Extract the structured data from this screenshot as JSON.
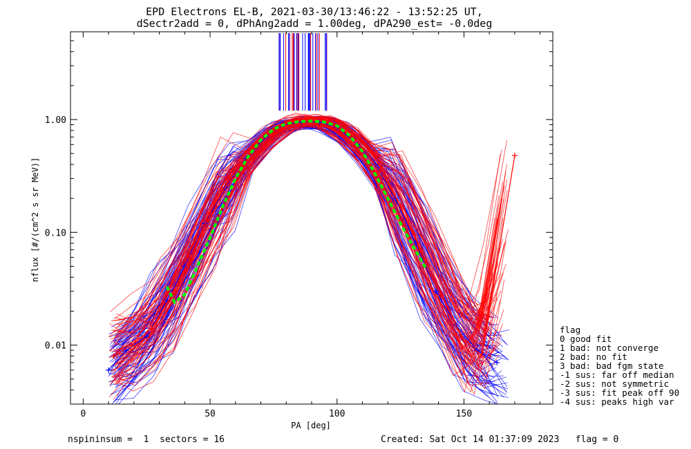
{
  "chart_data": {
    "type": "line",
    "title_line1": "EPD Electrons EL-B, 2021-03-30/13:46:22 - 13:52:25 UT,",
    "title_line2": "dSectr2add = 0, dPhAng2add = 1.00deg, dPA290_est=  -0.0deg",
    "xlabel": "PA [deg]",
    "ylabel": "nflux [#/(cm^2 s sr MeV)]",
    "xlim": [
      -5,
      185
    ],
    "ylim": [
      0.003,
      6.0
    ],
    "yscale": "log",
    "x_ticks": [
      0,
      50,
      100,
      150
    ],
    "x_tick_labels": [
      "0",
      "50",
      "100",
      "150"
    ],
    "y_ticks": [
      0.01,
      0.1,
      1.0
    ],
    "y_tick_labels": [
      "0.01",
      "0.10",
      "1.00"
    ],
    "series": [
      {
        "color": "#0000ff",
        "marker": "+",
        "values": [
          [
            10,
            0.006
          ],
          [
            17,
            0.009
          ],
          [
            25,
            0.012
          ],
          [
            33,
            0.025
          ],
          [
            40,
            0.05
          ],
          [
            48,
            0.12
          ],
          [
            56,
            0.25
          ],
          [
            64,
            0.45
          ],
          [
            72,
            0.7
          ],
          [
            79,
            0.9
          ],
          [
            86,
            0.95
          ],
          [
            93,
            0.95
          ],
          [
            100,
            0.85
          ],
          [
            108,
            0.6
          ],
          [
            115,
            0.4
          ],
          [
            123,
            0.2
          ],
          [
            131,
            0.08
          ],
          [
            139,
            0.03
          ],
          [
            147,
            0.015
          ],
          [
            155,
            0.009
          ],
          [
            163,
            0.007
          ]
        ]
      },
      {
        "color": "#ff0000",
        "marker": "+",
        "values": [
          [
            12,
            0.008
          ],
          [
            19,
            0.01
          ],
          [
            27,
            0.014
          ],
          [
            35,
            0.028
          ],
          [
            42,
            0.06
          ],
          [
            50,
            0.15
          ],
          [
            58,
            0.3
          ],
          [
            66,
            0.5
          ],
          [
            74,
            0.75
          ],
          [
            81,
            0.95
          ],
          [
            88,
            1.0
          ],
          [
            95,
            0.97
          ],
          [
            102,
            0.8
          ],
          [
            110,
            0.55
          ],
          [
            117,
            0.35
          ],
          [
            125,
            0.17
          ],
          [
            133,
            0.07
          ],
          [
            141,
            0.028
          ],
          [
            149,
            0.012
          ],
          [
            157,
            0.008
          ],
          [
            170,
            0.48
          ]
        ]
      },
      {
        "color": "#00ff00",
        "dash": true,
        "values": [
          [
            33,
            0.033
          ],
          [
            36,
            0.024
          ],
          [
            40,
            0.028
          ],
          [
            45,
            0.05
          ],
          [
            50,
            0.09
          ],
          [
            55,
            0.17
          ],
          [
            60,
            0.3
          ],
          [
            65,
            0.47
          ],
          [
            70,
            0.66
          ],
          [
            75,
            0.82
          ],
          [
            80,
            0.92
          ],
          [
            85,
            0.96
          ],
          [
            90,
            0.97
          ],
          [
            95,
            0.95
          ],
          [
            100,
            0.88
          ],
          [
            105,
            0.72
          ],
          [
            110,
            0.52
          ],
          [
            115,
            0.33
          ],
          [
            120,
            0.2
          ],
          [
            125,
            0.12
          ],
          [
            130,
            0.075
          ],
          [
            135,
            0.048
          ]
        ]
      }
    ],
    "legend_placement": "right-outside",
    "legend_title": "flag",
    "legend_entries": [
      " 0 good fit",
      " 1 bad: not converge",
      " 2 bad: no fit",
      " 3 bad: bad fgm state",
      "-1 sus: far off median",
      "-2 sus: not symmetric",
      "-3 sus: fit peak off 90",
      "-4 sus: peaks high var"
    ]
  },
  "footer": {
    "left": "nspininsum =  1  sectors = 16",
    "right": "Created: Sat Oct 14 01:37:09 2023   flag = 0"
  }
}
